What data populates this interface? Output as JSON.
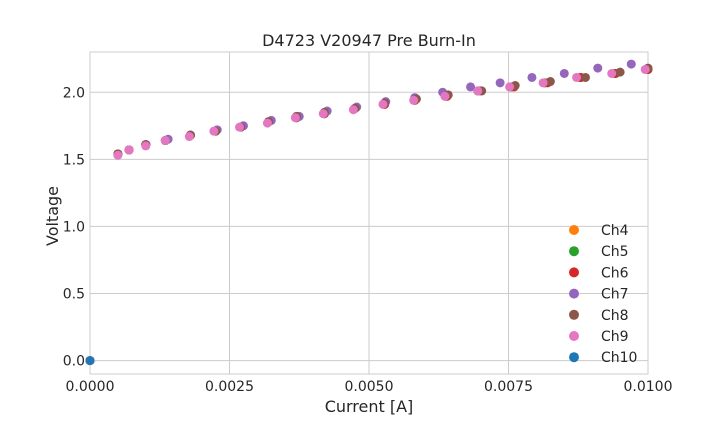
{
  "chart_data": {
    "type": "scatter",
    "title": "D4723 V20947 Pre Burn-In",
    "xlabel": "Current [A]",
    "ylabel": "Voltage",
    "xlim": [
      0.0,
      0.01
    ],
    "ylim": [
      -0.1,
      2.3
    ],
    "x_ticks": [
      "0.0000",
      "0.0025",
      "0.0050",
      "0.0075",
      "0.0100"
    ],
    "x_tick_values": [
      0.0,
      0.0025,
      0.005,
      0.0075,
      0.01
    ],
    "y_ticks": [
      "0.0",
      "0.5",
      "1.0",
      "1.5",
      "2.0"
    ],
    "y_tick_values": [
      0.0,
      0.5,
      1.0,
      1.5,
      2.0
    ],
    "grid": true,
    "legend_position": "lower-right",
    "series": [
      {
        "name": "Ch4",
        "color": "#ff7f0e",
        "points": [
          [
            0.0,
            0.0
          ],
          [
            0.0005,
            1.54
          ],
          [
            0.0007,
            1.57
          ],
          [
            0.001,
            1.61
          ],
          [
            0.00135,
            1.64
          ],
          [
            0.0018,
            1.68
          ],
          [
            0.00225,
            1.71
          ],
          [
            0.0027,
            1.74
          ],
          [
            0.0032,
            1.78
          ],
          [
            0.0037,
            1.81
          ],
          [
            0.0042,
            1.84
          ],
          [
            0.00475,
            1.88
          ],
          [
            0.00528,
            1.91
          ],
          [
            0.00582,
            1.94
          ],
          [
            0.00638,
            1.97
          ],
          [
            0.00695,
            2.01
          ],
          [
            0.00755,
            2.04
          ],
          [
            0.00815,
            2.07
          ],
          [
            0.00878,
            2.11
          ],
          [
            0.00942,
            2.14
          ],
          [
            0.01,
            2.17
          ]
        ]
      },
      {
        "name": "Ch5",
        "color": "#2ca02c",
        "points": [
          [
            0.0,
            0.0
          ],
          [
            0.0005,
            1.54
          ],
          [
            0.0007,
            1.57
          ],
          [
            0.001,
            1.61
          ],
          [
            0.00135,
            1.64
          ],
          [
            0.0018,
            1.68
          ],
          [
            0.00225,
            1.71
          ],
          [
            0.0027,
            1.74
          ],
          [
            0.0032,
            1.78
          ],
          [
            0.0037,
            1.81
          ],
          [
            0.0042,
            1.84
          ],
          [
            0.00475,
            1.88
          ],
          [
            0.00528,
            1.91
          ],
          [
            0.00582,
            1.94
          ],
          [
            0.00638,
            1.97
          ],
          [
            0.00695,
            2.01
          ],
          [
            0.00755,
            2.04
          ],
          [
            0.00815,
            2.07
          ],
          [
            0.00878,
            2.11
          ],
          [
            0.00942,
            2.14
          ],
          [
            0.01,
            2.17
          ]
        ]
      },
      {
        "name": "Ch6",
        "color": "#d62728",
        "points": [
          [
            0.0,
            0.0
          ],
          [
            0.0005,
            1.54
          ],
          [
            0.0007,
            1.57
          ],
          [
            0.001,
            1.61
          ],
          [
            0.00135,
            1.64
          ],
          [
            0.0018,
            1.68
          ],
          [
            0.00225,
            1.71
          ],
          [
            0.0027,
            1.74
          ],
          [
            0.0032,
            1.78
          ],
          [
            0.0037,
            1.81
          ],
          [
            0.0042,
            1.84
          ],
          [
            0.00475,
            1.88
          ],
          [
            0.00528,
            1.91
          ],
          [
            0.00582,
            1.94
          ],
          [
            0.0064,
            1.97
          ],
          [
            0.007,
            2.01
          ],
          [
            0.0076,
            2.04
          ],
          [
            0.0082,
            2.07
          ],
          [
            0.0088,
            2.11
          ],
          [
            0.0094,
            2.14
          ],
          [
            0.01,
            2.17
          ]
        ]
      },
      {
        "name": "Ch7",
        "color": "#9467bd",
        "points": [
          [
            0.0,
            0.0
          ],
          [
            0.0005,
            1.54
          ],
          [
            0.0007,
            1.57
          ],
          [
            0.001,
            1.61
          ],
          [
            0.0014,
            1.65
          ],
          [
            0.0018,
            1.68
          ],
          [
            0.00228,
            1.72
          ],
          [
            0.00275,
            1.75
          ],
          [
            0.00325,
            1.79
          ],
          [
            0.00375,
            1.82
          ],
          [
            0.00425,
            1.86
          ],
          [
            0.00478,
            1.89
          ],
          [
            0.0053,
            1.93
          ],
          [
            0.00582,
            1.96
          ],
          [
            0.00632,
            2.0
          ],
          [
            0.00682,
            2.04
          ],
          [
            0.00735,
            2.07
          ],
          [
            0.00792,
            2.11
          ],
          [
            0.0085,
            2.14
          ],
          [
            0.0091,
            2.18
          ],
          [
            0.0097,
            2.21
          ]
        ]
      },
      {
        "name": "Ch8",
        "color": "#8c564b",
        "points": [
          [
            0.0,
            0.0
          ],
          [
            0.0005,
            1.54
          ],
          [
            0.0007,
            1.57
          ],
          [
            0.001,
            1.61
          ],
          [
            0.00135,
            1.64
          ],
          [
            0.0018,
            1.68
          ],
          [
            0.00225,
            1.71
          ],
          [
            0.0027,
            1.74
          ],
          [
            0.0032,
            1.78
          ],
          [
            0.0037,
            1.82
          ],
          [
            0.0042,
            1.85
          ],
          [
            0.00475,
            1.88
          ],
          [
            0.00528,
            1.92
          ],
          [
            0.00585,
            1.95
          ],
          [
            0.00642,
            1.98
          ],
          [
            0.00702,
            2.01
          ],
          [
            0.00762,
            2.05
          ],
          [
            0.00825,
            2.08
          ],
          [
            0.00888,
            2.11
          ],
          [
            0.0095,
            2.15
          ],
          [
            0.01,
            2.18
          ]
        ]
      },
      {
        "name": "Ch9",
        "color": "#e377c2",
        "points": [
          [
            0.0,
            0.0
          ],
          [
            0.0005,
            1.53
          ],
          [
            0.0007,
            1.57
          ],
          [
            0.001,
            1.6
          ],
          [
            0.00135,
            1.64
          ],
          [
            0.00178,
            1.67
          ],
          [
            0.00222,
            1.71
          ],
          [
            0.00268,
            1.74
          ],
          [
            0.00318,
            1.77
          ],
          [
            0.00368,
            1.81
          ],
          [
            0.00418,
            1.84
          ],
          [
            0.00472,
            1.87
          ],
          [
            0.00525,
            1.91
          ],
          [
            0.0058,
            1.94
          ],
          [
            0.00636,
            1.97
          ],
          [
            0.00695,
            2.01
          ],
          [
            0.00752,
            2.04
          ],
          [
            0.00812,
            2.07
          ],
          [
            0.00872,
            2.11
          ],
          [
            0.00935,
            2.14
          ],
          [
            0.00995,
            2.17
          ]
        ]
      },
      {
        "name": "Ch10",
        "color": "#1f77b4",
        "points": [
          [
            0.0,
            0.0
          ]
        ]
      }
    ]
  }
}
